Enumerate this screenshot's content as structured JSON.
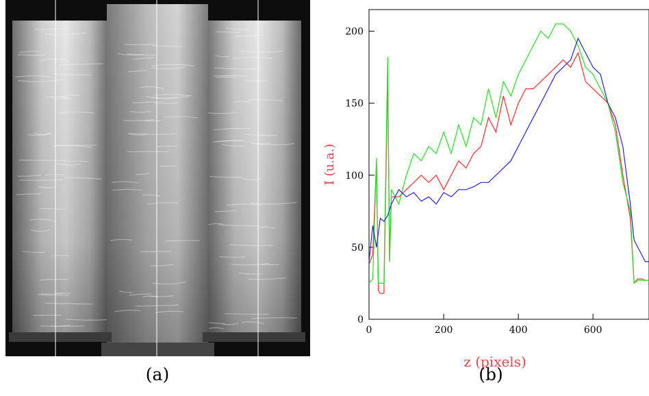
{
  "captions": {
    "a": "(a)",
    "b": "(b)"
  },
  "photo": {
    "description_icon": "photo-of-three-glass-columns",
    "colors": {
      "background": "#0d0d0d",
      "column_light": "#e6e6e6",
      "column_mid": "#8c8c8c",
      "marker_line": "#ffffff"
    }
  },
  "chart_data": {
    "type": "line",
    "title": "",
    "xlabel": "z (pixels)",
    "ylabel": "I (u.a.)",
    "label_color": "#e8474b",
    "xlim": [
      0,
      750
    ],
    "ylim": [
      0,
      215
    ],
    "xticks": [
      0,
      200,
      400,
      600
    ],
    "yticks": [
      0,
      50,
      100,
      150,
      200
    ],
    "grid": false,
    "series": [
      {
        "color": "#ff2a2a",
        "x": [
          0,
          10,
          20,
          25,
          30,
          40,
          50,
          55,
          60,
          80,
          100,
          120,
          140,
          160,
          180,
          200,
          220,
          240,
          260,
          280,
          300,
          320,
          340,
          360,
          380,
          400,
          420,
          440,
          460,
          480,
          500,
          520,
          540,
          560,
          580,
          600,
          620,
          640,
          660,
          680,
          700,
          710,
          720,
          730,
          740,
          750
        ],
        "y": [
          38,
          45,
          110,
          20,
          18,
          18,
          170,
          40,
          85,
          85,
          90,
          95,
          100,
          95,
          100,
          90,
          100,
          110,
          105,
          115,
          120,
          140,
          130,
          155,
          135,
          150,
          160,
          160,
          165,
          170,
          175,
          180,
          175,
          185,
          165,
          160,
          155,
          150,
          135,
          100,
          70,
          25,
          28,
          28,
          27,
          27
        ]
      },
      {
        "color": "#22e022",
        "x": [
          0,
          10,
          20,
          25,
          30,
          40,
          50,
          55,
          60,
          80,
          100,
          120,
          140,
          160,
          180,
          200,
          220,
          240,
          260,
          280,
          300,
          320,
          340,
          360,
          380,
          400,
          420,
          440,
          460,
          480,
          500,
          520,
          540,
          560,
          580,
          600,
          620,
          640,
          660,
          680,
          700,
          710,
          720,
          730,
          740,
          750
        ],
        "y": [
          25,
          28,
          112,
          25,
          25,
          25,
          182,
          40,
          90,
          80,
          100,
          115,
          110,
          120,
          115,
          130,
          115,
          135,
          120,
          140,
          135,
          160,
          140,
          165,
          155,
          170,
          180,
          190,
          200,
          195,
          205,
          205,
          200,
          190,
          175,
          170,
          160,
          150,
          130,
          95,
          75,
          25,
          27,
          27,
          27,
          27
        ]
      },
      {
        "color": "#2222ee",
        "x": [
          0,
          10,
          20,
          30,
          40,
          50,
          60,
          80,
          100,
          120,
          140,
          160,
          180,
          200,
          220,
          240,
          260,
          280,
          300,
          320,
          340,
          360,
          380,
          400,
          420,
          440,
          460,
          480,
          500,
          520,
          540,
          560,
          580,
          600,
          620,
          640,
          660,
          680,
          700,
          710,
          720,
          730,
          740,
          750
        ],
        "y": [
          40,
          65,
          50,
          70,
          68,
          72,
          80,
          90,
          85,
          88,
          82,
          85,
          80,
          88,
          85,
          90,
          90,
          92,
          95,
          95,
          100,
          105,
          110,
          120,
          130,
          140,
          150,
          160,
          170,
          175,
          180,
          195,
          185,
          175,
          170,
          150,
          140,
          120,
          80,
          55,
          50,
          45,
          40,
          40
        ]
      }
    ]
  }
}
